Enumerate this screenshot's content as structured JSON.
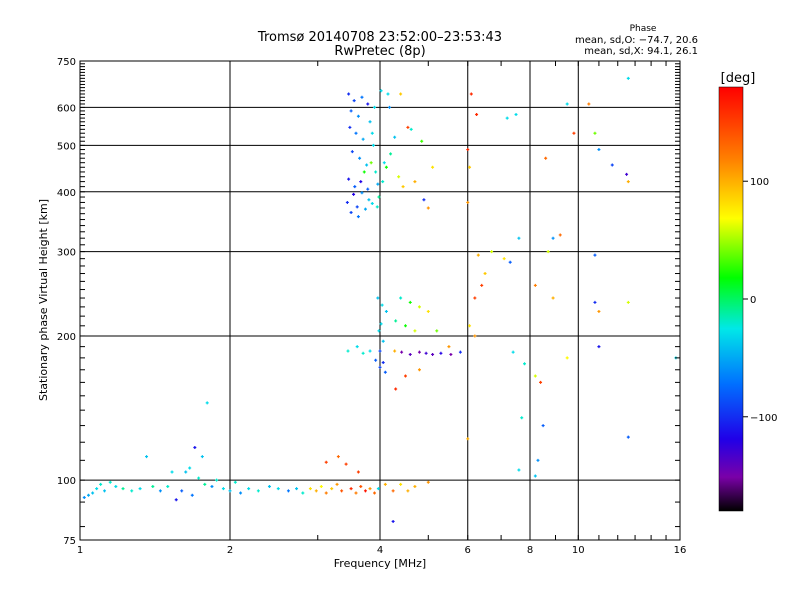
{
  "chart_data": {
    "type": "scatter",
    "title_line1": "Tromsø 20140708 23:52:00–23:53:43",
    "title_line2": "RwPretec (8p)",
    "phase_header": "Phase",
    "phase_line1": "mean, sd,O: −74.7, 20.6",
    "phase_line2": "mean, sd,X:  94.1, 26.1",
    "xlabel": "Frequency [MHz]",
    "ylabel": "Stationary phase Virtual Height [km]",
    "x_scale": "log",
    "y_scale": "log",
    "xlim": [
      1,
      16
    ],
    "ylim": [
      75,
      750
    ],
    "x_ticks": [
      {
        "v": 1,
        "label": "1"
      },
      {
        "v": 2,
        "label": "2"
      },
      {
        "v": 4,
        "label": "4"
      },
      {
        "v": 6,
        "label": "6"
      },
      {
        "v": 8,
        "label": "8"
      },
      {
        "v": 10,
        "label": "10"
      },
      {
        "v": 16,
        "label": "16"
      }
    ],
    "x_grid": [
      2,
      4,
      6,
      8,
      10
    ],
    "y_ticks": [
      {
        "v": 75,
        "label": "75"
      },
      {
        "v": 100,
        "label": "100"
      },
      {
        "v": 200,
        "label": "200"
      },
      {
        "v": 300,
        "label": "300"
      },
      {
        "v": 400,
        "label": "400"
      },
      {
        "v": 500,
        "label": "500"
      },
      {
        "v": 600,
        "label": "600"
      },
      {
        "v": 750,
        "label": "750"
      }
    ],
    "y_grid": [
      100,
      200,
      300,
      400,
      500,
      600
    ],
    "grid": true,
    "colorbar": {
      "label": "[deg]",
      "min": -180,
      "max": 180,
      "ticks": [
        {
          "v": 100,
          "label": "100"
        },
        {
          "v": 0,
          "label": "0"
        },
        {
          "v": -100,
          "label": "−100"
        }
      ]
    },
    "points": [
      {
        "f": 1.02,
        "h": 92,
        "p": -60
      },
      {
        "f": 1.04,
        "h": 93,
        "p": -50
      },
      {
        "f": 1.06,
        "h": 94,
        "p": -40
      },
      {
        "f": 1.08,
        "h": 96,
        "p": -30
      },
      {
        "f": 1.1,
        "h": 98,
        "p": -20
      },
      {
        "f": 1.12,
        "h": 95,
        "p": -40
      },
      {
        "f": 1.15,
        "h": 99,
        "p": -20
      },
      {
        "f": 1.18,
        "h": 97,
        "p": -30
      },
      {
        "f": 1.22,
        "h": 96,
        "p": -10
      },
      {
        "f": 1.27,
        "h": 95,
        "p": -20
      },
      {
        "f": 1.32,
        "h": 96,
        "p": -30
      },
      {
        "f": 1.36,
        "h": 112,
        "p": -40
      },
      {
        "f": 1.4,
        "h": 97,
        "p": -10
      },
      {
        "f": 1.45,
        "h": 95,
        "p": -60
      },
      {
        "f": 1.5,
        "h": 97,
        "p": -20
      },
      {
        "f": 1.53,
        "h": 104,
        "p": -30
      },
      {
        "f": 1.56,
        "h": 91,
        "p": -110
      },
      {
        "f": 1.6,
        "h": 95,
        "p": -80
      },
      {
        "f": 1.63,
        "h": 104,
        "p": -40
      },
      {
        "f": 1.66,
        "h": 106,
        "p": -30
      },
      {
        "f": 1.68,
        "h": 93,
        "p": -70
      },
      {
        "f": 1.7,
        "h": 117,
        "p": -110
      },
      {
        "f": 1.73,
        "h": 101,
        "p": -20
      },
      {
        "f": 1.76,
        "h": 112,
        "p": -40
      },
      {
        "f": 1.78,
        "h": 98,
        "p": -10
      },
      {
        "f": 1.8,
        "h": 145,
        "p": -30
      },
      {
        "f": 1.84,
        "h": 97,
        "p": -60
      },
      {
        "f": 1.88,
        "h": 100,
        "p": -20
      },
      {
        "f": 1.94,
        "h": 96,
        "p": -30
      },
      {
        "f": 2.0,
        "h": 95,
        "p": -40
      },
      {
        "f": 2.05,
        "h": 99,
        "p": -20
      },
      {
        "f": 2.1,
        "h": 94,
        "p": -60
      },
      {
        "f": 2.18,
        "h": 96,
        "p": -30
      },
      {
        "f": 2.28,
        "h": 95,
        "p": -20
      },
      {
        "f": 2.4,
        "h": 97,
        "p": -40
      },
      {
        "f": 2.5,
        "h": 96,
        "p": -30
      },
      {
        "f": 2.62,
        "h": 95,
        "p": -70
      },
      {
        "f": 2.72,
        "h": 96,
        "p": -40
      },
      {
        "f": 2.8,
        "h": 94,
        "p": -20
      },
      {
        "f": 2.9,
        "h": 96,
        "p": 80
      },
      {
        "f": 2.98,
        "h": 95,
        "p": 100
      },
      {
        "f": 3.05,
        "h": 97,
        "p": 70
      },
      {
        "f": 3.12,
        "h": 94,
        "p": 120
      },
      {
        "f": 3.2,
        "h": 96,
        "p": 90
      },
      {
        "f": 3.28,
        "h": 98,
        "p": 110
      },
      {
        "f": 3.35,
        "h": 95,
        "p": 140
      },
      {
        "f": 3.42,
        "h": 108,
        "p": 150
      },
      {
        "f": 3.5,
        "h": 96,
        "p": 160
      },
      {
        "f": 3.58,
        "h": 94,
        "p": 120
      },
      {
        "f": 3.66,
        "h": 97,
        "p": 140
      },
      {
        "f": 3.74,
        "h": 95,
        "p": 170
      },
      {
        "f": 3.82,
        "h": 96,
        "p": 110
      },
      {
        "f": 3.9,
        "h": 94,
        "p": 130
      },
      {
        "f": 3.97,
        "h": 96,
        "p": -30
      },
      {
        "f": 4.1,
        "h": 98,
        "p": 100
      },
      {
        "f": 4.25,
        "h": 95,
        "p": 130
      },
      {
        "f": 4.4,
        "h": 98,
        "p": 80
      },
      {
        "f": 4.55,
        "h": 95,
        "p": 100
      },
      {
        "f": 4.7,
        "h": 97,
        "p": 100
      },
      {
        "f": 5.0,
        "h": 99,
        "p": 110
      },
      {
        "f": 4.25,
        "h": 82,
        "p": -110
      },
      {
        "f": 3.62,
        "h": 104,
        "p": 150
      },
      {
        "f": 3.3,
        "h": 112,
        "p": 130
      },
      {
        "f": 3.12,
        "h": 109,
        "p": 150
      },
      {
        "f": 3.46,
        "h": 640,
        "p": -100
      },
      {
        "f": 3.55,
        "h": 620,
        "p": -90
      },
      {
        "f": 3.68,
        "h": 630,
        "p": -70
      },
      {
        "f": 3.78,
        "h": 610,
        "p": -110
      },
      {
        "f": 3.5,
        "h": 590,
        "p": -80
      },
      {
        "f": 3.62,
        "h": 575,
        "p": -60
      },
      {
        "f": 3.82,
        "h": 560,
        "p": -40
      },
      {
        "f": 3.48,
        "h": 545,
        "p": -100
      },
      {
        "f": 3.58,
        "h": 530,
        "p": -70
      },
      {
        "f": 3.7,
        "h": 515,
        "p": -50
      },
      {
        "f": 3.88,
        "h": 500,
        "p": -30
      },
      {
        "f": 3.52,
        "h": 485,
        "p": -90
      },
      {
        "f": 3.64,
        "h": 470,
        "p": -60
      },
      {
        "f": 3.76,
        "h": 455,
        "p": -40
      },
      {
        "f": 3.92,
        "h": 440,
        "p": -20
      },
      {
        "f": 3.46,
        "h": 425,
        "p": -110
      },
      {
        "f": 3.56,
        "h": 410,
        "p": -80
      },
      {
        "f": 3.68,
        "h": 398,
        "p": -60
      },
      {
        "f": 3.8,
        "h": 385,
        "p": -40
      },
      {
        "f": 3.95,
        "h": 372,
        "p": -20
      },
      {
        "f": 3.5,
        "h": 362,
        "p": -90
      },
      {
        "f": 3.62,
        "h": 355,
        "p": -70
      },
      {
        "f": 3.74,
        "h": 368,
        "p": -50
      },
      {
        "f": 3.86,
        "h": 378,
        "p": -30
      },
      {
        "f": 3.98,
        "h": 390,
        "p": -10
      },
      {
        "f": 4.05,
        "h": 420,
        "p": -20
      },
      {
        "f": 4.12,
        "h": 450,
        "p": 20
      },
      {
        "f": 4.2,
        "h": 480,
        "p": -10
      },
      {
        "f": 4.28,
        "h": 520,
        "p": -40
      },
      {
        "f": 4.36,
        "h": 430,
        "p": 60
      },
      {
        "f": 4.45,
        "h": 410,
        "p": 90
      },
      {
        "f": 4.55,
        "h": 545,
        "p": 150
      },
      {
        "f": 4.62,
        "h": 540,
        "p": -20
      },
      {
        "f": 4.7,
        "h": 420,
        "p": 100
      },
      {
        "f": 4.85,
        "h": 510,
        "p": 30
      },
      {
        "f": 4.02,
        "h": 650,
        "p": -30
      },
      {
        "f": 4.18,
        "h": 600,
        "p": -60
      },
      {
        "f": 3.9,
        "h": 600,
        "p": -30
      },
      {
        "f": 3.72,
        "h": 440,
        "p": 20
      },
      {
        "f": 3.84,
        "h": 460,
        "p": 40
      },
      {
        "f": 3.66,
        "h": 420,
        "p": -120
      },
      {
        "f": 3.54,
        "h": 395,
        "p": -120
      },
      {
        "f": 3.44,
        "h": 380,
        "p": -100
      },
      {
        "f": 3.6,
        "h": 372,
        "p": -90
      },
      {
        "f": 3.78,
        "h": 405,
        "p": -80
      },
      {
        "f": 3.96,
        "h": 415,
        "p": -50
      },
      {
        "f": 4.08,
        "h": 460,
        "p": -30
      },
      {
        "f": 3.86,
        "h": 530,
        "p": -30
      },
      {
        "f": 4.15,
        "h": 640,
        "p": -30
      },
      {
        "f": 4.4,
        "h": 640,
        "p": 90
      },
      {
        "f": 4.9,
        "h": 385,
        "p": -100
      },
      {
        "f": 5.0,
        "h": 370,
        "p": 110
      },
      {
        "f": 5.1,
        "h": 450,
        "p": 80
      },
      {
        "f": 3.96,
        "h": 240,
        "p": -40
      },
      {
        "f": 4.04,
        "h": 232,
        "p": -30
      },
      {
        "f": 4.12,
        "h": 225,
        "p": -40
      },
      {
        "f": 4.02,
        "h": 212,
        "p": -30
      },
      {
        "f": 3.98,
        "h": 205,
        "p": -30
      },
      {
        "f": 4.06,
        "h": 195,
        "p": -40
      },
      {
        "f": 4.0,
        "h": 186,
        "p": -90
      },
      {
        "f": 3.92,
        "h": 178,
        "p": -80
      },
      {
        "f": 4.0,
        "h": 172,
        "p": -90
      },
      {
        "f": 4.1,
        "h": 168,
        "p": -80
      },
      {
        "f": 4.06,
        "h": 176,
        "p": -100
      },
      {
        "f": 3.82,
        "h": 186,
        "p": -30
      },
      {
        "f": 3.6,
        "h": 190,
        "p": -30
      },
      {
        "f": 3.45,
        "h": 186,
        "p": -20
      },
      {
        "f": 3.7,
        "h": 184,
        "p": -20
      },
      {
        "f": 4.28,
        "h": 186,
        "p": 100
      },
      {
        "f": 4.42,
        "h": 185,
        "p": -150
      },
      {
        "f": 4.6,
        "h": 183,
        "p": -140
      },
      {
        "f": 4.8,
        "h": 185,
        "p": -150
      },
      {
        "f": 4.95,
        "h": 184,
        "p": -130
      },
      {
        "f": 5.1,
        "h": 183,
        "p": -140
      },
      {
        "f": 5.3,
        "h": 184,
        "p": -120
      },
      {
        "f": 5.55,
        "h": 183,
        "p": -150
      },
      {
        "f": 5.8,
        "h": 185,
        "p": -100
      },
      {
        "f": 4.4,
        "h": 240,
        "p": -20
      },
      {
        "f": 4.6,
        "h": 235,
        "p": 20
      },
      {
        "f": 4.8,
        "h": 230,
        "p": 60
      },
      {
        "f": 5.0,
        "h": 225,
        "p": 80
      },
      {
        "f": 4.5,
        "h": 210,
        "p": 20
      },
      {
        "f": 4.7,
        "h": 205,
        "p": 60
      },
      {
        "f": 4.3,
        "h": 215,
        "p": -10
      },
      {
        "f": 5.2,
        "h": 205,
        "p": 40
      },
      {
        "f": 6.05,
        "h": 210,
        "p": 80
      },
      {
        "f": 6.2,
        "h": 200,
        "p": 110
      },
      {
        "f": 4.5,
        "h": 165,
        "p": 150
      },
      {
        "f": 4.8,
        "h": 170,
        "p": 110
      },
      {
        "f": 5.5,
        "h": 190,
        "p": 110
      },
      {
        "f": 4.3,
        "h": 155,
        "p": 160
      },
      {
        "f": 6.1,
        "h": 640,
        "p": 160
      },
      {
        "f": 6.25,
        "h": 580,
        "p": 160
      },
      {
        "f": 6.0,
        "h": 490,
        "p": 160
      },
      {
        "f": 6.05,
        "h": 450,
        "p": 90
      },
      {
        "f": 6.0,
        "h": 380,
        "p": 110
      },
      {
        "f": 6.3,
        "h": 295,
        "p": 100
      },
      {
        "f": 6.4,
        "h": 255,
        "p": 150
      },
      {
        "f": 6.2,
        "h": 240,
        "p": 150
      },
      {
        "f": 6.5,
        "h": 270,
        "p": 90
      },
      {
        "f": 7.1,
        "h": 290,
        "p": 80
      },
      {
        "f": 7.3,
        "h": 285,
        "p": -80
      },
      {
        "f": 7.5,
        "h": 580,
        "p": -30
      },
      {
        "f": 7.2,
        "h": 570,
        "p": -30
      },
      {
        "f": 6.7,
        "h": 300,
        "p": 60
      },
      {
        "f": 7.6,
        "h": 320,
        "p": -40
      },
      {
        "f": 7.8,
        "h": 175,
        "p": -20
      },
      {
        "f": 7.4,
        "h": 185,
        "p": -30
      },
      {
        "f": 7.7,
        "h": 135,
        "p": -20
      },
      {
        "f": 7.6,
        "h": 105,
        "p": -30
      },
      {
        "f": 6.0,
        "h": 122,
        "p": 100
      },
      {
        "f": 8.2,
        "h": 165,
        "p": 60
      },
      {
        "f": 8.4,
        "h": 160,
        "p": 150
      },
      {
        "f": 8.5,
        "h": 130,
        "p": -80
      },
      {
        "f": 8.3,
        "h": 110,
        "p": -60
      },
      {
        "f": 8.2,
        "h": 102,
        "p": -40
      },
      {
        "f": 8.9,
        "h": 240,
        "p": 100
      },
      {
        "f": 8.7,
        "h": 300,
        "p": 60
      },
      {
        "f": 8.9,
        "h": 320,
        "p": -60
      },
      {
        "f": 9.2,
        "h": 325,
        "p": 130
      },
      {
        "f": 9.5,
        "h": 610,
        "p": -30
      },
      {
        "f": 8.6,
        "h": 470,
        "p": 130
      },
      {
        "f": 8.2,
        "h": 255,
        "p": 120
      },
      {
        "f": 9.5,
        "h": 180,
        "p": 70
      },
      {
        "f": 9.8,
        "h": 530,
        "p": 150
      },
      {
        "f": 10.5,
        "h": 610,
        "p": 120
      },
      {
        "f": 10.8,
        "h": 530,
        "p": 40
      },
      {
        "f": 11.0,
        "h": 490,
        "p": -60
      },
      {
        "f": 11.7,
        "h": 455,
        "p": -90
      },
      {
        "f": 12.5,
        "h": 435,
        "p": -130
      },
      {
        "f": 12.6,
        "h": 420,
        "p": 100
      },
      {
        "f": 10.8,
        "h": 295,
        "p": -80
      },
      {
        "f": 10.8,
        "h": 235,
        "p": -100
      },
      {
        "f": 11.0,
        "h": 225,
        "p": 110
      },
      {
        "f": 11.0,
        "h": 190,
        "p": -110
      },
      {
        "f": 12.6,
        "h": 235,
        "p": 60
      },
      {
        "f": 12.6,
        "h": 123,
        "p": -80
      },
      {
        "f": 12.6,
        "h": 690,
        "p": -30
      },
      {
        "f": 15.7,
        "h": 180,
        "p": -30
      }
    ]
  }
}
